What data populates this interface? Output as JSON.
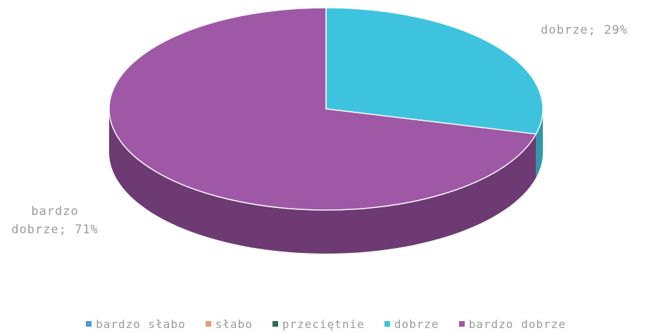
{
  "chart_data": {
    "type": "pie",
    "title": "",
    "categories": [
      "bardzo słabo",
      "słabo",
      "przeciętnie",
      "dobrze",
      "bardzo dobrze"
    ],
    "values": [
      0,
      0,
      0,
      29,
      71
    ],
    "data_labels": [
      "",
      "",
      "",
      "dobrze; 29%",
      "bardzo dobrze; 71%"
    ],
    "colors": [
      "#4a9bd6",
      "#e89c77",
      "#2d6b52",
      "#3ec3df",
      "#9e58a6"
    ],
    "side_colors": [
      "#3a7aa8",
      "#b87a5c",
      "#214f3c",
      "#2f98ad",
      "#6e3a73"
    ],
    "legend_position": "bottom",
    "style": "3d"
  },
  "labels": {
    "dobrze": "dobrze; 29%",
    "bardzo_line1": "bardzo",
    "bardzo_line2": "dobrze; 71%"
  },
  "legend": [
    {
      "label": "bardzo słabo",
      "color": "#4a9bd6"
    },
    {
      "label": "słabo",
      "color": "#e89c77"
    },
    {
      "label": "przeciętnie",
      "color": "#2d6b52"
    },
    {
      "label": "dobrze",
      "color": "#3ec3df"
    },
    {
      "label": "bardzo dobrze",
      "color": "#9e58a6"
    }
  ]
}
